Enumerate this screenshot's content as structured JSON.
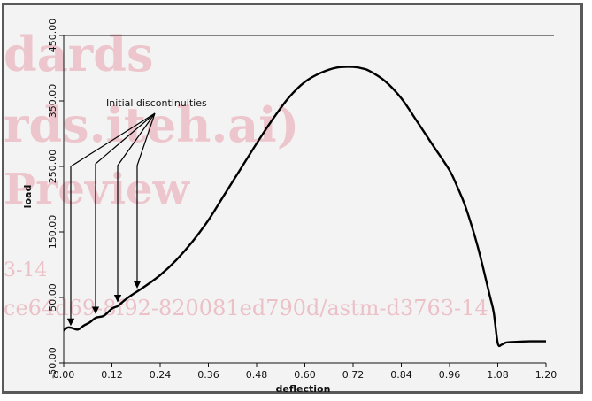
{
  "chart_data": {
    "type": "line",
    "title": "",
    "xlabel": "deflection",
    "ylabel": "load",
    "xlim": [
      0.0,
      1.2
    ],
    "ylim": [
      -50.0,
      450.0
    ],
    "x_ticks": [
      "0.00",
      "0.12",
      "0.24",
      "0.36",
      "0.48",
      "0.60",
      "0.72",
      "0.84",
      "0.96",
      "1.08",
      "1.20"
    ],
    "y_ticks": [
      "-50.00",
      "50.00",
      "150.00",
      "250.00",
      "350.00",
      "450.00"
    ],
    "grid": false,
    "legend": "none",
    "series": [
      {
        "x": [
          0.0,
          0.01,
          0.02,
          0.035,
          0.05,
          0.065,
          0.08,
          0.1,
          0.12,
          0.135,
          0.15,
          0.17,
          0.2,
          0.24,
          0.28,
          0.32,
          0.36,
          0.4,
          0.44,
          0.48,
          0.52,
          0.56,
          0.6,
          0.64,
          0.68,
          0.72,
          0.74,
          0.76,
          0.8,
          0.84,
          0.88,
          0.92,
          0.96,
          0.98,
          1.0,
          1.03,
          1.06,
          1.07,
          1.08,
          1.09,
          1.1,
          1.12,
          1.16,
          1.2
        ],
        "y": [
          -0.5,
          4.0,
          3.5,
          1.0,
          7.0,
          12.0,
          19.0,
          22.0,
          33.0,
          37.0,
          45.0,
          54.0,
          66.0,
          84.0,
          107.0,
          135.0,
          168.0,
          207.0,
          246.0,
          285.0,
          322.0,
          355.0,
          379.0,
          393.0,
          401.0,
          402.0,
          400.0,
          396.0,
          380.0,
          354.0,
          318.0,
          281.0,
          244.0,
          218.0,
          188.0,
          128.0,
          53.0,
          27.0,
          -20.0,
          -22.0,
          -19.0,
          -18.0,
          -17.0,
          -17.0
        ]
      }
    ],
    "annotations": [
      {
        "text": "Initial discontinuities",
        "arrow_targets": [
          {
            "x": 0.02,
            "y": 1.0
          },
          {
            "x": 0.08,
            "y": 19.0
          },
          {
            "x": 0.135,
            "y": 37.0
          },
          {
            "x": 0.18,
            "y": 58.0
          }
        ]
      }
    ],
    "colors": {
      "line": "#000000",
      "frame": "#5a5a5a",
      "plot_bg": "#f3f3f3"
    }
  },
  "watermark": {
    "lines": [
      "dards",
      "rds.iteh.ai)",
      "Preview",
      "3-14",
      "ce64d69-8f92-820081ed790d/astm-d3763-14"
    ]
  }
}
